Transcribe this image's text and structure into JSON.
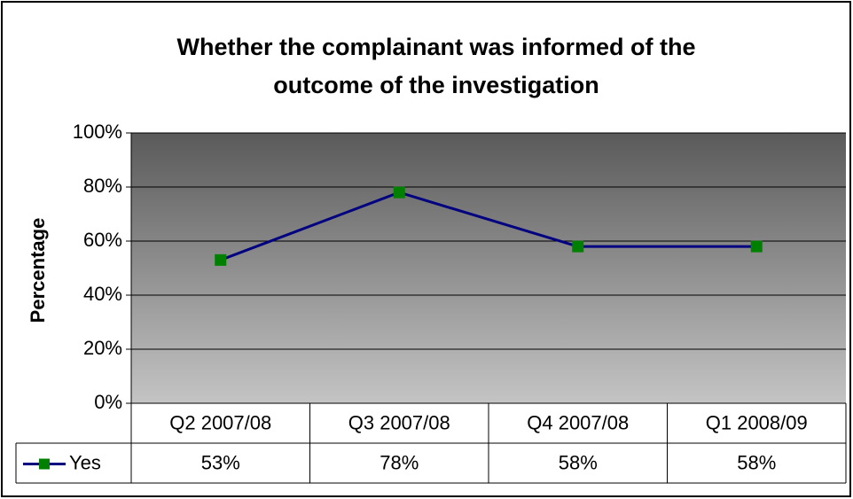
{
  "chart_data": {
    "type": "line",
    "title": [
      "Whether the complainant was informed of the",
      "outcome of the investigation"
    ],
    "y_label": "Percentage",
    "categories": [
      "Q2 2007/08",
      "Q3 2007/08",
      "Q4 2007/08",
      "Q1 2008/09"
    ],
    "series": [
      {
        "name": "Yes",
        "color": "#000080",
        "marker_color": "#008000",
        "values": [
          53,
          78,
          58,
          58
        ],
        "value_labels": [
          "53%",
          "78%",
          "58%",
          "58%"
        ]
      }
    ],
    "ylim": [
      0,
      100
    ],
    "yticks": [
      {
        "value": 0,
        "label": "0%"
      },
      {
        "value": 20,
        "label": "20%"
      },
      {
        "value": 40,
        "label": "40%"
      },
      {
        "value": 60,
        "label": "60%"
      },
      {
        "value": 80,
        "label": "80%"
      },
      {
        "value": 100,
        "label": "100%"
      }
    ],
    "grid": true
  }
}
